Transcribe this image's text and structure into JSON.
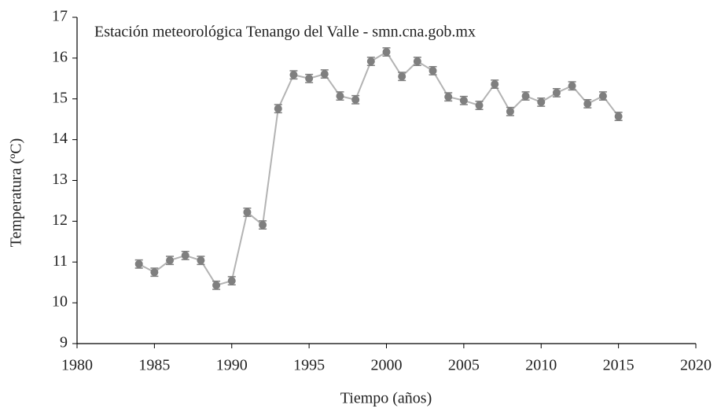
{
  "chart_data": {
    "type": "line",
    "annotation": "Estación meteorológica Tenango del Valle - smn.cna.gob.mx",
    "x_label": "Tiempo (años)",
    "y_label": "Temperatura  (ºC)",
    "x": [
      1984,
      1985,
      1986,
      1987,
      1988,
      1989,
      1990,
      1991,
      1992,
      1993,
      1994,
      1995,
      1996,
      1997,
      1998,
      1999,
      2000,
      2001,
      2002,
      2003,
      2004,
      2005,
      2006,
      2007,
      2008,
      2009,
      2010,
      2011,
      2012,
      2013,
      2014,
      2015
    ],
    "series": [
      {
        "color": "#7f7f7f",
        "values": [
          10.95,
          10.75,
          11.04,
          11.16,
          11.04,
          10.43,
          10.54,
          12.22,
          11.91,
          14.76,
          15.59,
          15.5,
          15.61,
          15.07,
          14.98,
          15.92,
          16.15,
          15.55,
          15.92,
          15.69,
          15.05,
          14.96,
          14.84,
          15.36,
          14.69,
          15.07,
          14.92,
          15.15,
          15.32,
          14.88,
          15.07,
          14.57
        ],
        "errors": [
          0.1,
          0.1,
          0.1,
          0.1,
          0.1,
          0.1,
          0.1,
          0.1,
          0.1,
          0.1,
          0.1,
          0.1,
          0.1,
          0.1,
          0.1,
          0.1,
          0.1,
          0.1,
          0.1,
          0.1,
          0.1,
          0.1,
          0.1,
          0.1,
          0.1,
          0.1,
          0.1,
          0.1,
          0.1,
          0.1,
          0.1,
          0.1
        ]
      }
    ],
    "xlim": [
      1980,
      2020
    ],
    "xticks": [
      1980,
      1985,
      1990,
      1995,
      2000,
      2005,
      2010,
      2015,
      2020
    ],
    "ylim": [
      9,
      17
    ],
    "yticks": [
      9,
      10,
      11,
      12,
      13,
      14,
      15,
      16,
      17
    ],
    "line_color": "#b3b3b3",
    "grid": false
  }
}
